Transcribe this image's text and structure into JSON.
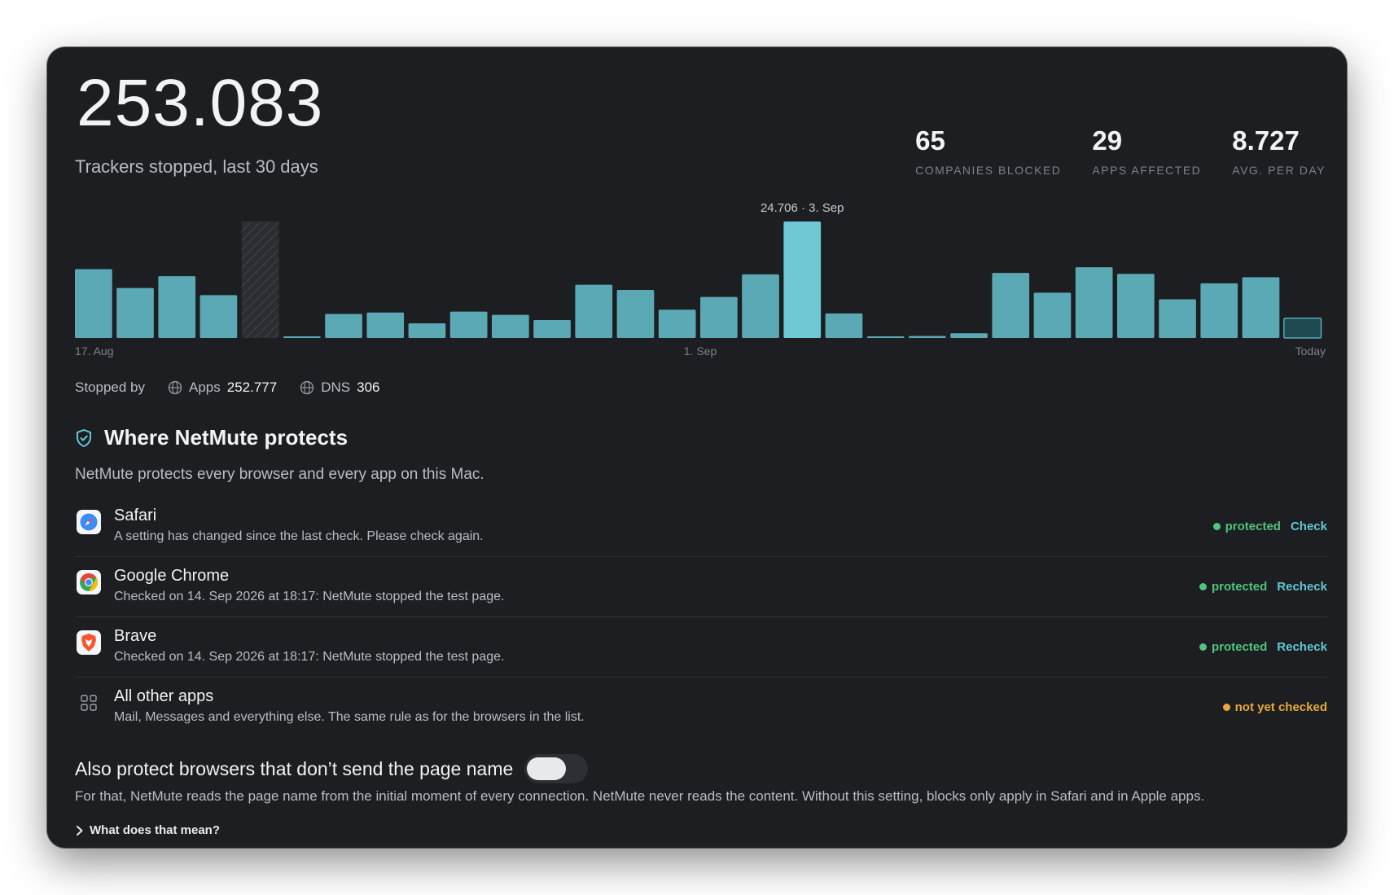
{
  "summary": {
    "total": "253.083",
    "subtitle": "Trackers stopped, last 30 days",
    "stats": [
      {
        "value": "65",
        "label": "COMPANIES BLOCKED"
      },
      {
        "value": "29",
        "label": "APPS AFFECTED"
      },
      {
        "value": "8.727",
        "label": "AVG. PER DAY"
      }
    ]
  },
  "chart_data": {
    "type": "bar",
    "title": "",
    "x_tick_labels": [
      "17. Aug",
      "1. Sep",
      "Today"
    ],
    "peak_annotation": "24.706 · 3. Sep",
    "ylim": [
      0,
      24706
    ],
    "values": [
      14600,
      10600,
      13100,
      9100,
      null,
      300,
      5100,
      5400,
      3100,
      5600,
      4900,
      3800,
      11300,
      10200,
      6000,
      8700,
      13500,
      24706,
      5200,
      300,
      400,
      1000,
      13800,
      9600,
      15000,
      13600,
      8200,
      11600,
      12900,
      4200
    ],
    "colors": {
      "bar": "#5aa9b4",
      "peak": "#6ec9d4",
      "today": "#1f4a52",
      "today_border": "#5aa9b4",
      "missing": "#2e3034"
    }
  },
  "stopped_by": {
    "label": "Stopped by",
    "apps_label": "Apps",
    "apps_value": "252.777",
    "dns_label": "DNS",
    "dns_value": "306"
  },
  "protects": {
    "title": "Where NetMute protects",
    "description": "NetMute protects every browser and every app on this Mac.",
    "items": [
      {
        "name": "Safari",
        "desc": "A setting has changed since the last check. Please check again.",
        "status": "protected",
        "action": "Check"
      },
      {
        "name": "Google Chrome",
        "desc": "Checked on 14. Sep 2026 at 18:17: NetMute stopped the test page.",
        "status": "protected",
        "action": "Recheck"
      },
      {
        "name": "Brave",
        "desc": "Checked on 14. Sep 2026 at 18:17: NetMute stopped the test page.",
        "status": "protected",
        "action": "Recheck"
      },
      {
        "name": "All other apps",
        "desc": "Mail, Messages and everything else. The same rule as for the browsers in the list.",
        "status": "not yet checked",
        "action": ""
      }
    ]
  },
  "also": {
    "title": "Also protect browsers that don’t send the page name",
    "enabled": false,
    "description": "For that, NetMute reads the page name from the initial moment of every connection. NetMute never reads the content. Without this setting, blocks only apply in Safari and in Apple apps.",
    "more_label": "What does that mean?"
  }
}
